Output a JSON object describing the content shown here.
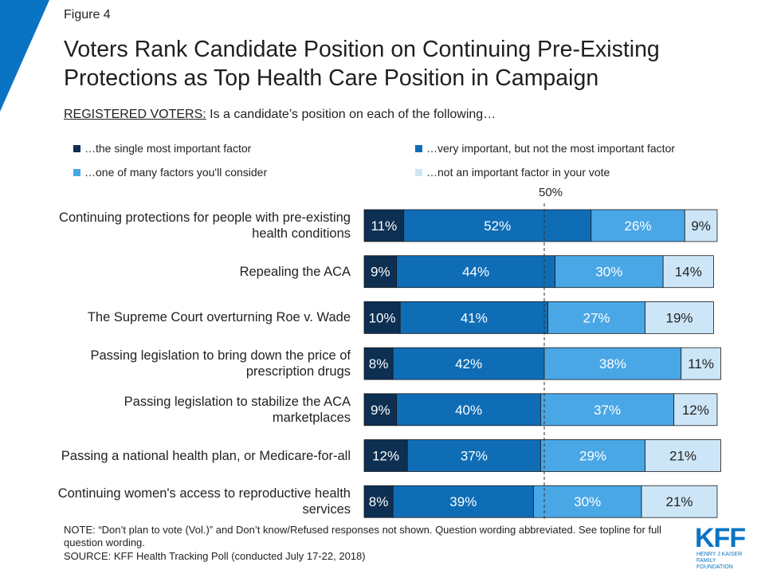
{
  "figure_label": "Figure 4",
  "chart_data": {
    "type": "stacked_barh",
    "title": "Voters Rank Candidate Position on Continuing Pre-Existing Protections as Top Health Care Position in Campaign",
    "subtitle_lead": "REGISTERED VOTERS:",
    "subtitle": "Is a candidate’s position on each of the following…",
    "categories": [
      "Continuing protections for people with pre-existing health conditions",
      "Repealing the ACA",
      "The Supreme Court overturning Roe v. Wade",
      "Passing legislation to bring down the price of prescription drugs",
      "Passing legislation to stabilize the ACA marketplaces",
      "Passing a national health plan, or Medicare-for-all",
      "Continuing women's access to reproductive health services"
    ],
    "series": [
      {
        "name": "…the single most important factor",
        "color": "#0c2f52",
        "values": [
          11,
          9,
          10,
          8,
          9,
          12,
          8
        ],
        "value_labels": [
          "11%",
          "9%",
          "10%",
          "8%",
          "9%",
          "12%",
          "8%"
        ]
      },
      {
        "name": "…very important, but not the most important factor",
        "color": "#0f6db6",
        "values": [
          52,
          44,
          41,
          42,
          40,
          37,
          39
        ],
        "value_labels": [
          "52%",
          "44%",
          "41%",
          "42%",
          "40%",
          "37%",
          "39%"
        ]
      },
      {
        "name": "…one of many factors you'll consider",
        "color": "#4aa7e6",
        "values": [
          26,
          30,
          27,
          38,
          37,
          29,
          30
        ],
        "value_labels": [
          "26%",
          "30%",
          "27%",
          "38%",
          "37%",
          "29%",
          "30%"
        ]
      },
      {
        "name": "…not an important factor in your vote",
        "color": "#cde6f7",
        "values": [
          9,
          14,
          19,
          11,
          12,
          21,
          21
        ],
        "value_labels": [
          "9%",
          "14%",
          "19%",
          "11%",
          "12%",
          "21%",
          "21%"
        ]
      }
    ],
    "xlim": [
      0,
      100
    ],
    "reference_line": {
      "value": 50,
      "label": "50%"
    },
    "note": "NOTE: “Don’t plan to vote (Vol.)” and Don’t know/Refused responses not shown. Question wording abbreviated. See topline for full question wording.",
    "source": "SOURCE: KFF Health Tracking Poll (conducted July 17-22, 2018)"
  },
  "logo": {
    "name": "KFF",
    "tagline": "HENRY J KAISER FAMILY FOUNDATION"
  }
}
